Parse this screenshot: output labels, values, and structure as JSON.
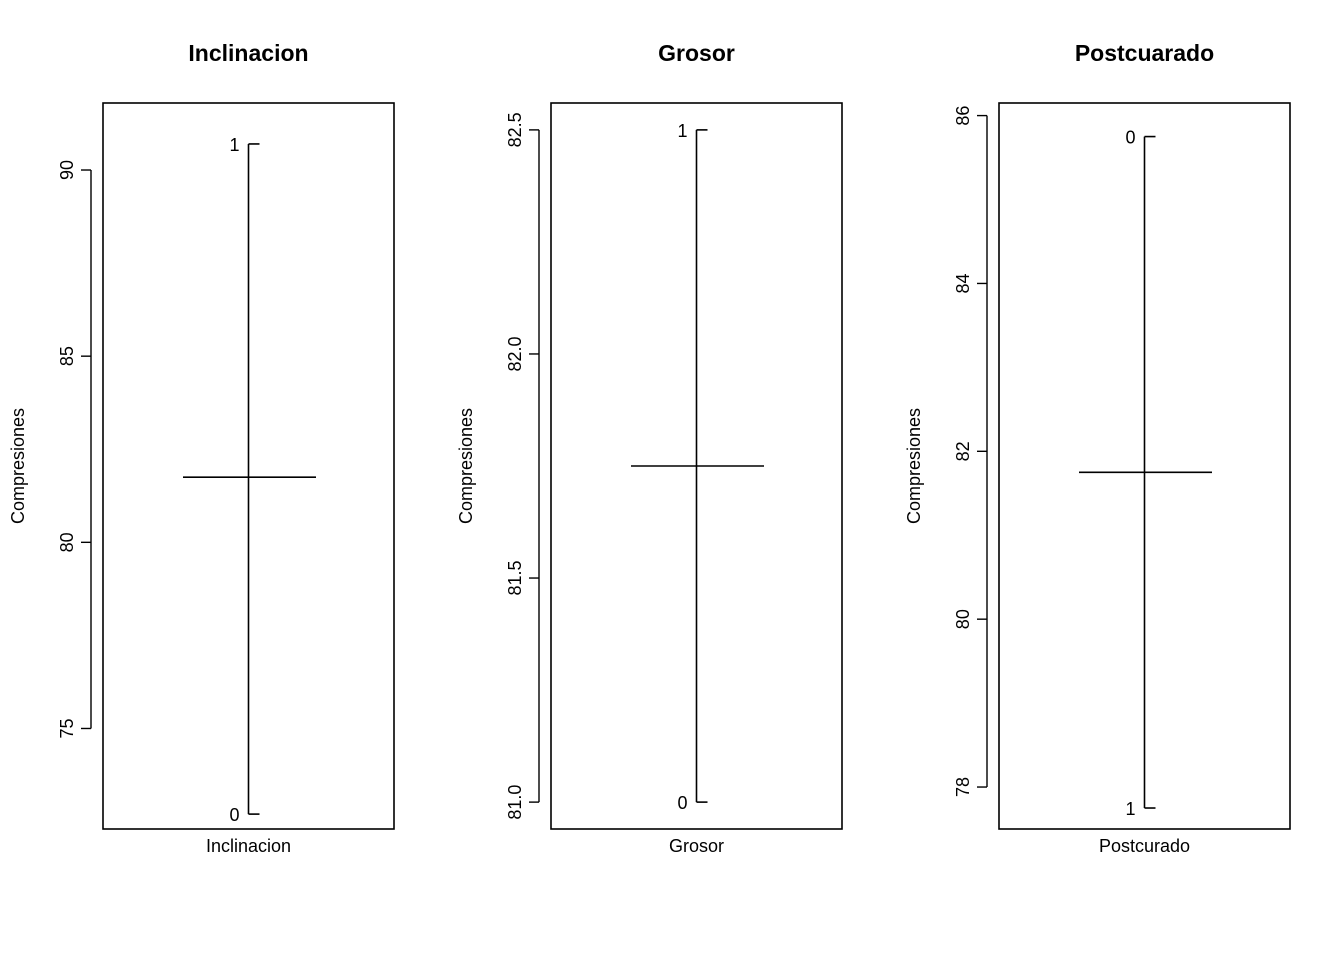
{
  "chart_data": [
    {
      "type": "effects",
      "title": "Inclinacion",
      "xlabel": "Inclinacion",
      "ylabel": "Compresiones",
      "ylim": [
        72.3,
        91.8
      ],
      "yticks": [
        "75",
        "80",
        "85",
        "90"
      ],
      "grand_mean": 81.75,
      "levels": [
        {
          "label": "1",
          "value": 90.7
        },
        {
          "label": "0",
          "value": 72.7
        }
      ]
    },
    {
      "type": "effects",
      "title": "Grosor",
      "xlabel": "Grosor",
      "ylabel": "Compresiones",
      "ylim": [
        80.94,
        82.56
      ],
      "yticks": [
        "81.0",
        "81.5",
        "82.0",
        "82.5"
      ],
      "grand_mean": 81.75,
      "levels": [
        {
          "label": "1",
          "value": 82.5
        },
        {
          "label": "0",
          "value": 81.0
        }
      ]
    },
    {
      "type": "effects",
      "title": "Postcuarado",
      "xlabel": "Postcurado",
      "ylabel": "Compresiones",
      "ylim": [
        77.5,
        86.15
      ],
      "yticks": [
        "78",
        "80",
        "82",
        "84",
        "86"
      ],
      "grand_mean": 81.75,
      "levels": [
        {
          "label": "0",
          "value": 85.75
        },
        {
          "label": "1",
          "value": 77.75
        }
      ]
    }
  ]
}
